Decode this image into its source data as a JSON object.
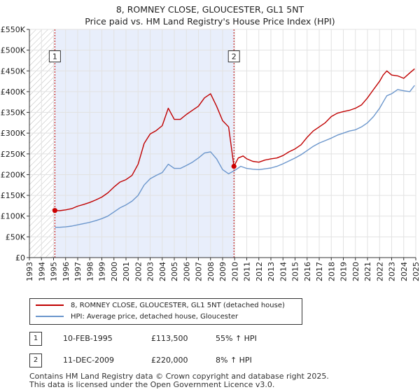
{
  "title_line1": "8, ROMNEY CLOSE, GLOUCESTER, GL1 5NT",
  "title_line2": "Price paid vs. HM Land Registry's House Price Index (HPI)",
  "colors": {
    "property": "#c00000",
    "hpi": "#6b96cc",
    "shade": "#e8eefb",
    "hatch": "#bbbbbb",
    "grid": "#e2e2e2",
    "marker": "#cc0000"
  },
  "chart_data": {
    "type": "line",
    "title": "8, ROMNEY CLOSE, GLOUCESTER, GL1 5NT",
    "subtitle": "Price paid vs. HM Land Registry's House Price Index (HPI)",
    "xlim": [
      1993,
      2025
    ],
    "ylim": [
      0,
      550000
    ],
    "x_ticks": [
      "1993",
      "1994",
      "1995",
      "1996",
      "1997",
      "1998",
      "1999",
      "2000",
      "2001",
      "2002",
      "2003",
      "2004",
      "2005",
      "2006",
      "2007",
      "2008",
      "2009",
      "2010",
      "2011",
      "2012",
      "2013",
      "2014",
      "2015",
      "2016",
      "2017",
      "2018",
      "2019",
      "2020",
      "2021",
      "2022",
      "2023",
      "2024",
      "2025"
    ],
    "y_ticks": [
      {
        "value": 0,
        "label": "£0"
      },
      {
        "value": 50000,
        "label": "£50K"
      },
      {
        "value": 100000,
        "label": "£100K"
      },
      {
        "value": 150000,
        "label": "£150K"
      },
      {
        "value": 200000,
        "label": "£200K"
      },
      {
        "value": 250000,
        "label": "£250K"
      },
      {
        "value": 300000,
        "label": "£300K"
      },
      {
        "value": 350000,
        "label": "£350K"
      },
      {
        "value": 400000,
        "label": "£400K"
      },
      {
        "value": 450000,
        "label": "£450K"
      },
      {
        "value": 500000,
        "label": "£500K"
      },
      {
        "value": 550000,
        "label": "£550K"
      }
    ],
    "series": [
      {
        "name": "8, ROMNEY CLOSE, GLOUCESTER, GL1 5NT (detached house)",
        "color": "#c00000",
        "x": [
          1995.11,
          1995.5,
          1996,
          1996.5,
          1997,
          1997.5,
          1998,
          1998.5,
          1999,
          1999.5,
          2000,
          2000.5,
          2001,
          2001.5,
          2002,
          2002.5,
          2003,
          2003.5,
          2004,
          2004.5,
          2005,
          2005.5,
          2006,
          2006.5,
          2007,
          2007.5,
          2008,
          2008.5,
          2009,
          2009.5,
          2009.94,
          2010.3,
          2010.7,
          2011,
          2011.5,
          2012,
          2012.5,
          2013,
          2013.5,
          2014,
          2014.5,
          2015,
          2015.5,
          2016,
          2016.5,
          2017,
          2017.5,
          2018,
          2018.5,
          2019,
          2019.5,
          2020,
          2020.5,
          2021,
          2021.5,
          2022,
          2022.3,
          2022.6,
          2023,
          2023.5,
          2024,
          2024.5,
          2024.9
        ],
        "y": [
          113500,
          113000,
          115000,
          118000,
          124000,
          128000,
          133000,
          139000,
          146000,
          156000,
          170000,
          182000,
          188000,
          198000,
          225000,
          275000,
          298000,
          306000,
          318000,
          360000,
          333000,
          333000,
          345000,
          355000,
          365000,
          385000,
          395000,
          365000,
          330000,
          315000,
          220000,
          240000,
          245000,
          238000,
          232000,
          230000,
          235000,
          238000,
          240000,
          246000,
          255000,
          262000,
          272000,
          290000,
          305000,
          315000,
          325000,
          340000,
          348000,
          352000,
          355000,
          360000,
          368000,
          385000,
          405000,
          425000,
          440000,
          450000,
          440000,
          438000,
          432000,
          445000,
          455000
        ]
      },
      {
        "name": "HPI: Average price, detached house, Gloucester",
        "color": "#6b96cc",
        "x": [
          1995.11,
          1995.5,
          1996,
          1996.5,
          1997,
          1997.5,
          1998,
          1998.5,
          1999,
          1999.5,
          2000,
          2000.5,
          2001,
          2001.5,
          2002,
          2002.5,
          2003,
          2003.5,
          2004,
          2004.5,
          2005,
          2005.5,
          2006,
          2006.5,
          2007,
          2007.5,
          2008,
          2008.5,
          2009,
          2009.5,
          2010,
          2010.5,
          2011,
          2011.5,
          2012,
          2012.5,
          2013,
          2013.5,
          2014,
          2014.5,
          2015,
          2015.5,
          2016,
          2016.5,
          2017,
          2017.5,
          2018,
          2018.5,
          2019,
          2019.5,
          2020,
          2020.5,
          2021,
          2021.5,
          2022,
          2022.3,
          2022.6,
          2023,
          2023.5,
          2024,
          2024.5,
          2024.9
        ],
        "y": [
          73000,
          73000,
          74000,
          76000,
          79000,
          82000,
          85000,
          89000,
          94000,
          100000,
          110000,
          120000,
          127000,
          136000,
          150000,
          175000,
          190000,
          198000,
          205000,
          225000,
          215000,
          215000,
          222000,
          230000,
          240000,
          252000,
          255000,
          238000,
          212000,
          202000,
          210000,
          220000,
          215000,
          213000,
          212000,
          214000,
          216000,
          220000,
          226000,
          233000,
          240000,
          248000,
          258000,
          268000,
          276000,
          282000,
          288000,
          295000,
          300000,
          305000,
          308000,
          315000,
          325000,
          340000,
          360000,
          375000,
          390000,
          395000,
          405000,
          402000,
          400000,
          415000
        ]
      }
    ],
    "vlines": [
      {
        "x": 1995.11,
        "label": "1"
      },
      {
        "x": 2009.94,
        "label": "2"
      }
    ],
    "annotation_y": 485000,
    "shade_range": [
      1995.11,
      2009.94
    ],
    "hatch_range": [
      1993,
      1995.11
    ],
    "sales": [
      {
        "x": 1995.11,
        "y": 113500
      },
      {
        "x": 2009.94,
        "y": 220000
      }
    ]
  },
  "legend": {
    "property_label": "8, ROMNEY CLOSE, GLOUCESTER, GL1 5NT (detached house)",
    "hpi_label": "HPI: Average price, detached house, Gloucester"
  },
  "sales_table": [
    {
      "id": "1",
      "date": "10-FEB-1995",
      "price": "£113,500",
      "hpi": "55% ↑ HPI"
    },
    {
      "id": "2",
      "date": "11-DEC-2009",
      "price": "£220,000",
      "hpi": "8% ↑ HPI"
    }
  ],
  "footer": {
    "line1": "Contains HM Land Registry data © Crown copyright and database right 2025.",
    "line2": "This data is licensed under the Open Government Licence v3.0."
  }
}
